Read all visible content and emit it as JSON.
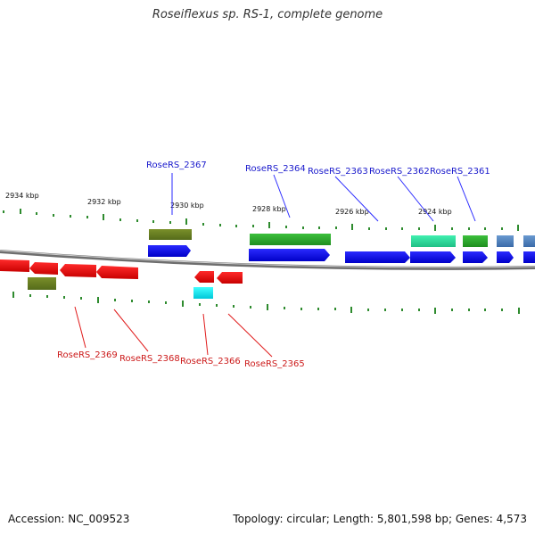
{
  "title": "Roseiflexus sp. RS-1, complete genome",
  "footer": {
    "accession": "Accession: NC_009523",
    "summary": "Topology: circular; Length: 5,801,598 bp; Genes: 4,573"
  },
  "colors": {
    "forward_cds": "#1a1aff",
    "reverse_cds": "#ff1a1a",
    "backbone": "#8c8c8c",
    "ticks": "#2e8b2e",
    "forward_label": "#1a1acc",
    "reverse_label": "#cc1a1a"
  },
  "kbp_labels": [
    "2934 kbp",
    "2932 kbp",
    "2930 kbp",
    "2928 kbp",
    "2926 kbp",
    "2924 kbp"
  ],
  "forward_gene_labels": [
    "RoseRS_2367",
    "RoseRS_2364",
    "RoseRS_2363",
    "RoseRS_2362",
    "RoseRS_2361"
  ],
  "reverse_gene_labels": [
    "RoseRS_2369",
    "RoseRS_2368",
    "RoseRS_2366",
    "RoseRS_2365"
  ]
}
